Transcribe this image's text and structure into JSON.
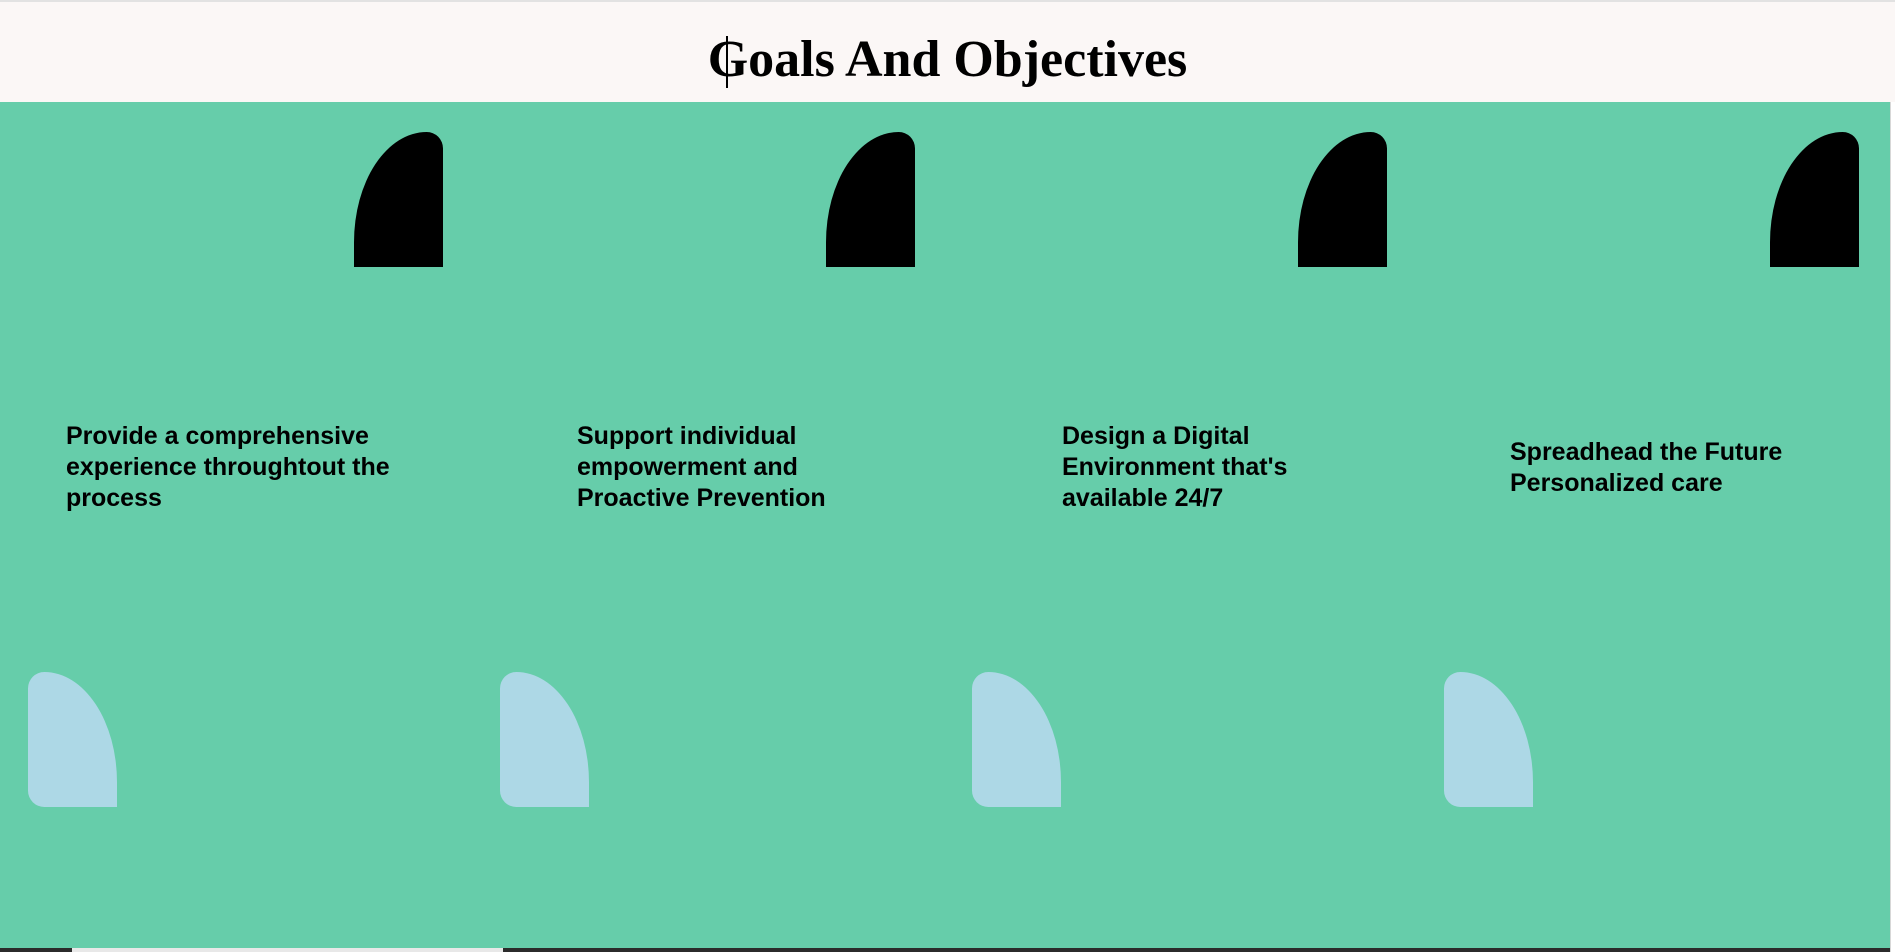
{
  "header": {
    "title": "Goals And Objectives"
  },
  "colors": {
    "header_background": "#fbf7f6",
    "panel_background": "#66cdaa",
    "top_shape": "#000000",
    "bottom_shape": "#add8e6",
    "text": "#000000"
  },
  "goals": [
    {
      "text": "Provide a comprehensive experience throughtout the process"
    },
    {
      "text": "Support individual empowerment and Proactive Prevention"
    },
    {
      "text": "Design a Digital Environment that's available 24/7"
    },
    {
      "text": "Spreadhead the Future Personalized care"
    }
  ]
}
